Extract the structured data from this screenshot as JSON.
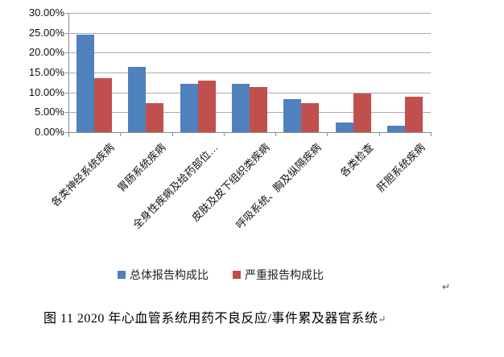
{
  "chart_data": {
    "type": "bar",
    "title": "",
    "categories": [
      "各类神经系统疾病",
      "胃肠系统疾病",
      "全身性疾病及给药部位…",
      "皮肤及皮下组织类疾病",
      "呼吸系统、胸及纵隔疾病",
      "各类检查",
      "肝胆系统疾病"
    ],
    "series": [
      {
        "name": "总体报告构成比",
        "color": "#4F81BD",
        "values": [
          24.5,
          16.4,
          12.2,
          12.1,
          8.4,
          2.4,
          1.6
        ]
      },
      {
        "name": "严重报告构成比",
        "color": "#C0504D",
        "values": [
          13.5,
          7.2,
          13.0,
          11.3,
          7.2,
          9.7,
          8.9
        ]
      }
    ],
    "ylabel": "",
    "xlabel": "",
    "ylim": [
      0,
      30
    ],
    "ytick_step": 5,
    "yticks": [
      "30.00%",
      "25.00%",
      "20.00%",
      "15.00%",
      "10.00%",
      "5.00%",
      "0.00%"
    ],
    "grid": true,
    "legend_position": "bottom",
    "axis_color": "#8c8c8c",
    "gridline_color": "#acacac"
  },
  "marks": {
    "chart_paragraph_return": "↵",
    "caption_return": "↵"
  },
  "caption": {
    "text": "图 11  2020 年心血管系统用药不良反应/事件累及器官系统"
  }
}
